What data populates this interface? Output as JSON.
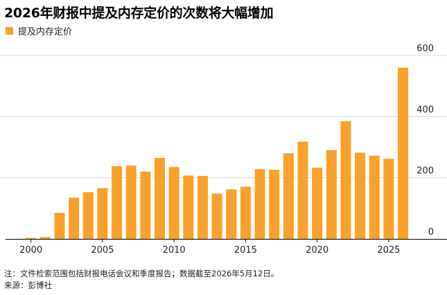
{
  "title": "2026年财报中提及内存定价的次数将大幅增加",
  "note": "注：文件检索范围包括财报电话会议和季度报告；数据截至2026年5月12日。",
  "source": "来源：彭博社",
  "chart_data": {
    "type": "bar",
    "legend_position": "top-left",
    "grid": true,
    "series": [
      {
        "name": "提及内存定价",
        "color": "#f9a12a",
        "x": [
          1999,
          2000,
          2001,
          2002,
          2003,
          2004,
          2005,
          2006,
          2007,
          2008,
          2009,
          2010,
          2011,
          2012,
          2013,
          2014,
          2015,
          2016,
          2017,
          2018,
          2019,
          2020,
          2021,
          2022,
          2023,
          2024,
          2025,
          2026
        ],
        "values": [
          0,
          3,
          6,
          85,
          135,
          153,
          166,
          238,
          240,
          220,
          265,
          235,
          207,
          206,
          148,
          162,
          171,
          228,
          226,
          280,
          318,
          233,
          290,
          385,
          282,
          272,
          262,
          560
        ]
      }
    ],
    "x_ticks": [
      2000,
      2005,
      2010,
      2015,
      2020,
      2025
    ],
    "y_ticks": [
      0,
      200,
      400,
      600
    ],
    "ylim": [
      0,
      600
    ],
    "xlim": [
      1998.6,
      2026.6
    ]
  }
}
